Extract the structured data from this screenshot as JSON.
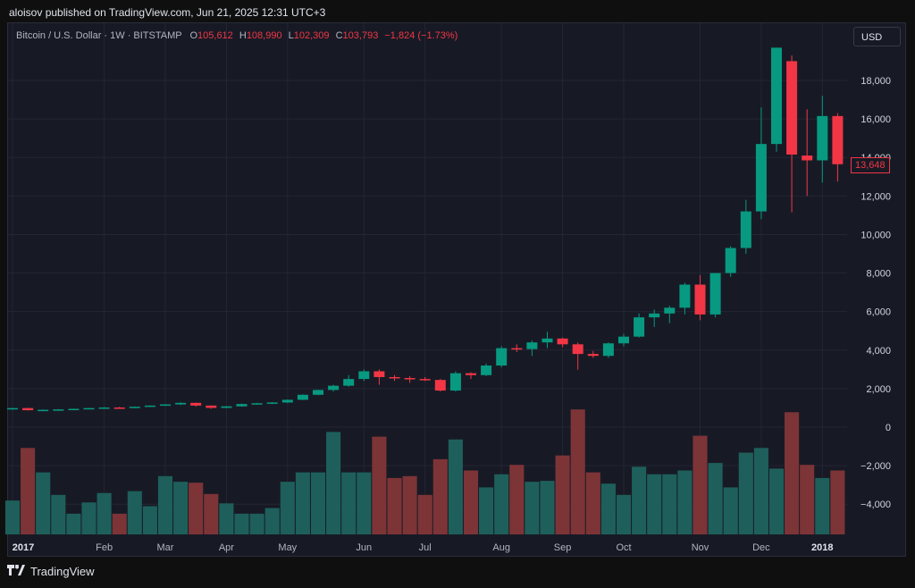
{
  "header": {
    "published": "aloisov published on TradingView.com, Jun 21, 2025 12:31 UTC+3"
  },
  "legend": {
    "symbol": "Bitcoin / U.S. Dollar · 1W · BITSTAMP",
    "o_label": "O",
    "o_value": "105,612",
    "h_label": "H",
    "h_value": "108,990",
    "l_label": "L",
    "l_value": "102,309",
    "c_label": "C",
    "c_value": "103,793",
    "change": "−1,824 (−1.73%)"
  },
  "currency_button": "USD",
  "last_price_label": "13,648",
  "footer": {
    "brand": "TradingView"
  },
  "colors": {
    "up": "#089981",
    "down": "#f23645",
    "vol_up": "#1e5f5b",
    "vol_down": "#7d3437",
    "grid": "#232633"
  },
  "chart_data": {
    "type": "candlestick",
    "price_axis": {
      "ticks": [
        -4000,
        -2000,
        0,
        2000,
        4000,
        6000,
        8000,
        10000,
        12000,
        14000,
        16000,
        18000
      ],
      "tick_labels": [
        "−4,000",
        "−2,000",
        "0",
        "2,000",
        "4,000",
        "6,000",
        "8,000",
        "10,000",
        "12,000",
        "14,000",
        "16,000",
        "18,000"
      ]
    },
    "x_labels": [
      {
        "label": "2017",
        "index": 0,
        "bold": true
      },
      {
        "label": "Feb",
        "index": 6
      },
      {
        "label": "Mar",
        "index": 10
      },
      {
        "label": "Apr",
        "index": 14
      },
      {
        "label": "May",
        "index": 18
      },
      {
        "label": "Jun",
        "index": 23
      },
      {
        "label": "Jul",
        "index": 27
      },
      {
        "label": "Aug",
        "index": 32
      },
      {
        "label": "Sep",
        "index": 36
      },
      {
        "label": "Oct",
        "index": 40
      },
      {
        "label": "Nov",
        "index": 45
      },
      {
        "label": "Dec",
        "index": 49
      },
      {
        "label": "2018",
        "index": 53,
        "bold": true
      }
    ],
    "candles": [
      [
        960,
        1000,
        900,
        990
      ],
      [
        990,
        1000,
        860,
        880
      ],
      [
        880,
        920,
        860,
        900
      ],
      [
        900,
        940,
        880,
        920
      ],
      [
        920,
        960,
        900,
        950
      ],
      [
        950,
        1000,
        930,
        990
      ],
      [
        990,
        1040,
        960,
        1020
      ],
      [
        1020,
        1050,
        990,
        1000
      ],
      [
        1000,
        1070,
        980,
        1060
      ],
      [
        1060,
        1130,
        1040,
        1120
      ],
      [
        1120,
        1200,
        1100,
        1180
      ],
      [
        1180,
        1290,
        1150,
        1260
      ],
      [
        1260,
        1270,
        1060,
        1120
      ],
      [
        1120,
        1130,
        950,
        1000
      ],
      [
        1000,
        1100,
        980,
        1080
      ],
      [
        1080,
        1220,
        1060,
        1200
      ],
      [
        1200,
        1260,
        1170,
        1240
      ],
      [
        1240,
        1300,
        1200,
        1280
      ],
      [
        1280,
        1440,
        1250,
        1420
      ],
      [
        1420,
        1700,
        1400,
        1680
      ],
      [
        1680,
        1950,
        1660,
        1930
      ],
      [
        1930,
        2200,
        1850,
        2150
      ],
      [
        2150,
        2700,
        2100,
        2500
      ],
      [
        2500,
        3000,
        2400,
        2900
      ],
      [
        2900,
        3000,
        2200,
        2600
      ],
      [
        2600,
        2700,
        2400,
        2550
      ],
      [
        2550,
        2650,
        2300,
        2500
      ],
      [
        2500,
        2600,
        2400,
        2450
      ],
      [
        2450,
        2500,
        1850,
        1900
      ],
      [
        1900,
        2900,
        1850,
        2800
      ],
      [
        2800,
        2850,
        2500,
        2700
      ],
      [
        2700,
        3300,
        2650,
        3200
      ],
      [
        3200,
        4200,
        3100,
        4100
      ],
      [
        4100,
        4300,
        3900,
        4050
      ],
      [
        4050,
        4500,
        3700,
        4400
      ],
      [
        4400,
        4950,
        4100,
        4600
      ],
      [
        4600,
        4650,
        4150,
        4300
      ],
      [
        4300,
        4400,
        2980,
        3800
      ],
      [
        3800,
        3950,
        3600,
        3700
      ],
      [
        3700,
        4400,
        3600,
        4350
      ],
      [
        4350,
        4850,
        4200,
        4700
      ],
      [
        4700,
        5900,
        4650,
        5700
      ],
      [
        5700,
        6100,
        5200,
        5900
      ],
      [
        5900,
        6300,
        5400,
        6200
      ],
      [
        6200,
        7500,
        5850,
        7400
      ],
      [
        7400,
        7900,
        5550,
        5850
      ],
      [
        5850,
        8000,
        5700,
        8000
      ],
      [
        8000,
        9400,
        7800,
        9300
      ],
      [
        9300,
        11800,
        9000,
        11200
      ],
      [
        11200,
        16600,
        10800,
        14700
      ],
      [
        14700,
        19700,
        14300,
        19700
      ],
      [
        19000,
        19300,
        11150,
        14150
      ],
      [
        14100,
        16500,
        12000,
        13850
      ],
      [
        13850,
        17200,
        12700,
        16150
      ],
      [
        16150,
        16300,
        12750,
        13650
      ]
    ],
    "volume_y_range": [
      -5600,
      1200
    ],
    "volume_base": -5600,
    "volume": [
      -3800,
      -1000,
      -2300,
      -3500,
      -4500,
      -3900,
      -3400,
      -4500,
      -3300,
      -4100,
      -2500,
      -2800,
      -2850,
      -3450,
      -3950,
      -4500,
      -4500,
      -4200,
      -2800,
      -2300,
      -2300,
      -150,
      -2300,
      -2300,
      -400,
      -2600,
      -2500,
      -3500,
      -1600,
      -550,
      -2200,
      -3100,
      -2400,
      -1900,
      -2800,
      -2750,
      -1400,
      1050,
      -2300,
      -2900,
      -3500,
      -2000,
      -2400,
      -2400,
      -2200,
      -350,
      -1800,
      -3100,
      -1250,
      -1000,
      -2100,
      900,
      -1900,
      -2600,
      -2200
    ]
  }
}
